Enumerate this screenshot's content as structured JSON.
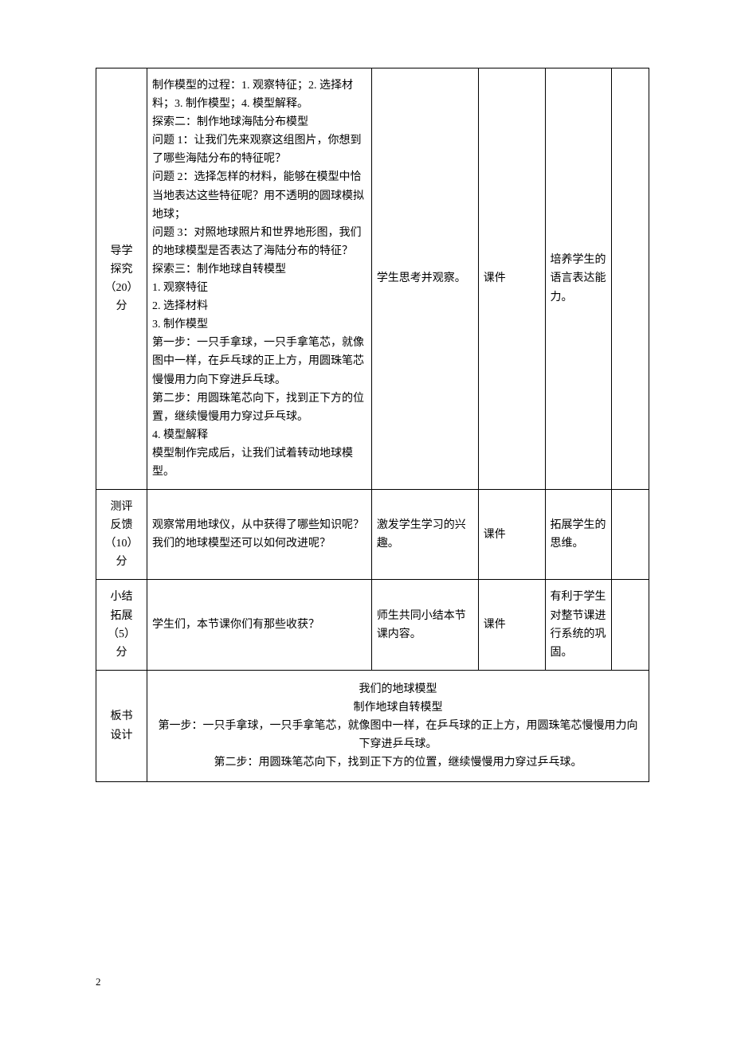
{
  "table": {
    "rows": [
      {
        "label": "导学\n探究\n（20）\n分",
        "teacher": "制作模型的过程：1. 观察特征；2. 选择材料；3. 制作模型；4. 模型解释。\n探索二：制作地球海陆分布模型\n问题 1：让我们先来观察这组图片，你想到了哪些海陆分布的特征呢？\n问题 2：选择怎样的材料，能够在模型中恰当地表达这些特征呢？用不透明的圆球模拟地球；\n问题 3：对照地球照片和世界地形图，我们的地球模型是否表达了海陆分布的特征？\n探索三：制作地球自转模型\n1. 观察特征\n2. 选择材料\n3. 制作模型\n第一步：一只手拿球，一只手拿笔芯，就像图中一样，在乒乓球的正上方，用圆珠笔芯慢慢用力向下穿进乒乓球。\n第二步：用圆珠笔芯向下，找到正下方的位置，继续慢慢用力穿过乒乓球。\n4. 模型解释\n模型制作完成后，让我们试着转动地球模型。",
        "student": "学生思考并观察。",
        "resource": "课件",
        "intent": "培养学生的语言表达能力。"
      },
      {
        "label": "测评\n反馈\n（10）\n分",
        "teacher": "观察常用地球仪，从中获得了哪些知识呢？我们的地球模型还可以如何改进呢？",
        "student": "激发学生学习的兴趣。",
        "resource": "课件",
        "intent": "拓展学生的思维。"
      },
      {
        "label": "小结\n拓展\n（5）\n分",
        "teacher": "学生们，本节课你们有那些收获？",
        "student": "师生共同小结本节课内容。",
        "resource": "课件",
        "intent": "有利于学生对整节课进行系统的巩固。"
      }
    ],
    "board": {
      "label": "板书\n设计",
      "title1": "我们的地球模型",
      "title2": "制作地球自转模型",
      "step1": "第一步：一只手拿球，一只手拿笔芯，就像图中一样，在乒乓球的正上方，用圆珠笔芯慢慢用力向下穿进乒乓球。",
      "step2": "第二步：用圆珠笔芯向下，找到正下方的位置，继续慢慢用力穿过乒乓球。"
    }
  },
  "page_number": "2"
}
